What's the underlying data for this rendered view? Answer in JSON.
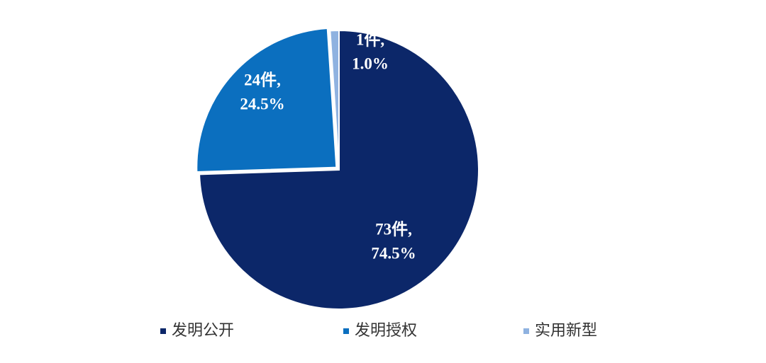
{
  "chart_data": {
    "type": "pie",
    "categories": [
      "发明公开",
      "发明授权",
      "实用新型"
    ],
    "values": [
      73,
      24,
      1
    ],
    "value_labels": [
      [
        "73件,",
        "74.5%"
      ],
      [
        "24件,",
        "24.5%"
      ],
      [
        "1件,",
        "1.0%"
      ]
    ],
    "colors": [
      "#0c2769",
      "#0b6fbf",
      "#8fb2e0"
    ],
    "legend": "bottom"
  }
}
